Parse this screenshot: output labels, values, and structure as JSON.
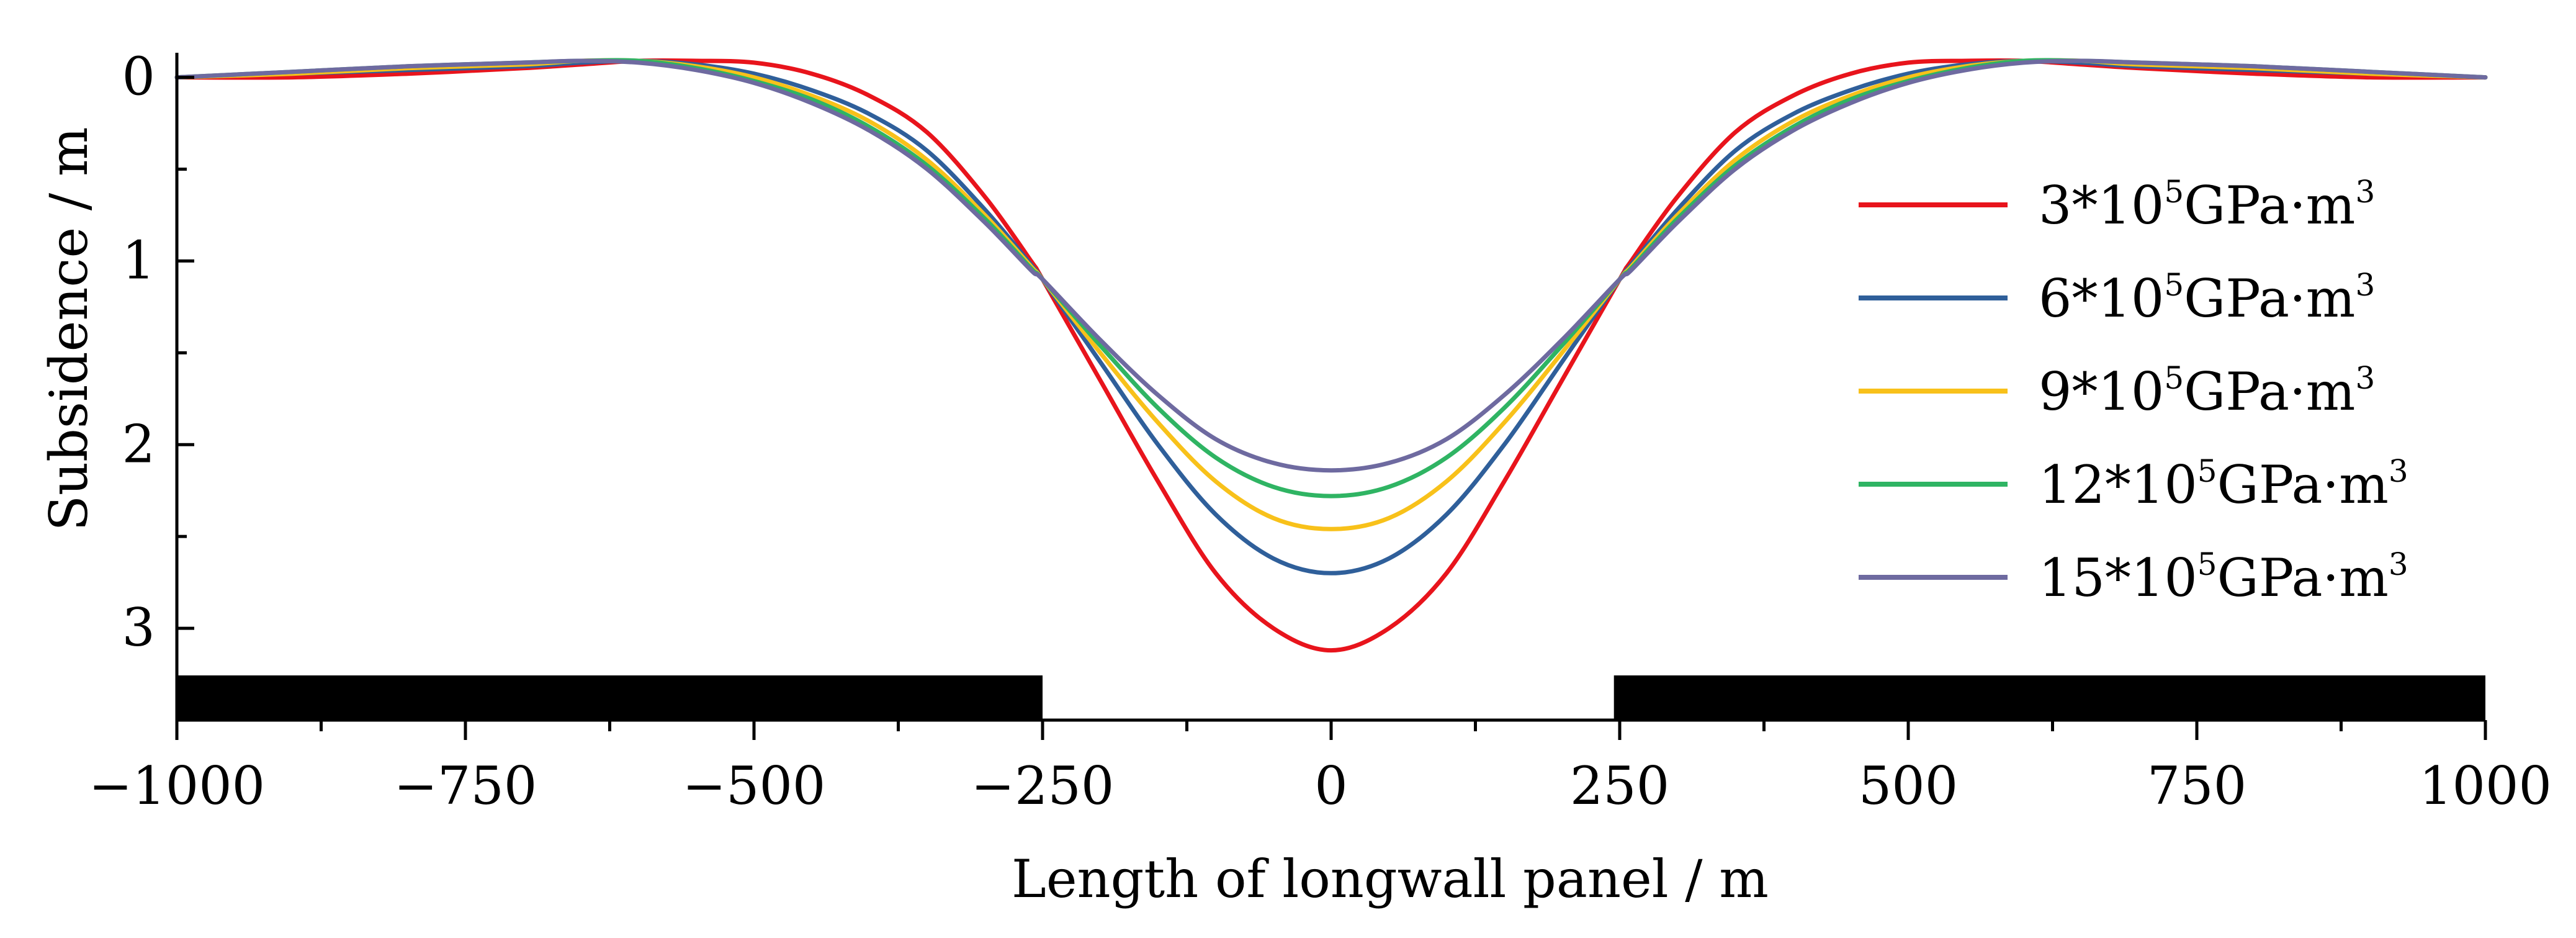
{
  "chart_data": {
    "type": "line",
    "title": "",
    "xlabel": "Length of longwall panel / m",
    "ylabel": "Subsidence / m",
    "xlim": [
      -1000,
      1000
    ],
    "ylim": [
      3.5,
      -0.1
    ],
    "x_ticks": [
      -1000,
      -750,
      -500,
      -250,
      0,
      250,
      500,
      750,
      1000
    ],
    "x_tick_labels": [
      "−1000",
      "−750",
      "−500",
      "−250",
      "0",
      "250",
      "500",
      "750",
      "1000"
    ],
    "y_ticks": [
      0,
      1,
      2,
      3
    ],
    "y_tick_labels": [
      "0",
      "1",
      "2",
      "3"
    ],
    "legend_position": "right",
    "x": [
      -1000,
      -900,
      -800,
      -700,
      -650,
      -600,
      -550,
      -500,
      -450,
      -400,
      -350,
      -300,
      -260,
      -250,
      -200,
      -150,
      -100,
      -50,
      0,
      50,
      100,
      150,
      200,
      250,
      260,
      300,
      350,
      400,
      450,
      500,
      550,
      600,
      650,
      700,
      800,
      900,
      1000
    ],
    "series": [
      {
        "name": "3*10^5 GPa·m^3",
        "legend_base": "3*10",
        "legend_exp": "5",
        "legend_unit": "GPa·m",
        "legend_unit_exp": "3",
        "color": "#e8141c",
        "values": [
          0.0,
          0.0,
          -0.02,
          -0.05,
          -0.07,
          -0.09,
          -0.09,
          -0.08,
          -0.02,
          0.1,
          0.3,
          0.65,
          1.0,
          1.1,
          1.65,
          2.2,
          2.7,
          3.0,
          3.12,
          3.0,
          2.7,
          2.2,
          1.65,
          1.1,
          1.0,
          0.65,
          0.3,
          0.1,
          -0.02,
          -0.08,
          -0.09,
          -0.09,
          -0.07,
          -0.05,
          -0.02,
          0.0,
          0.0
        ]
      },
      {
        "name": "6*10^5 GPa·m^3",
        "legend_base": "6*10",
        "legend_exp": "5",
        "legend_unit": "GPa·m",
        "legend_unit_exp": "3",
        "color": "#2f5f9a",
        "values": [
          0.0,
          -0.02,
          -0.04,
          -0.06,
          -0.08,
          -0.09,
          -0.07,
          -0.02,
          0.07,
          0.2,
          0.4,
          0.72,
          1.02,
          1.1,
          1.55,
          2.0,
          2.38,
          2.62,
          2.7,
          2.62,
          2.38,
          2.0,
          1.55,
          1.1,
          1.02,
          0.72,
          0.4,
          0.2,
          0.07,
          -0.02,
          -0.07,
          -0.09,
          -0.08,
          -0.06,
          -0.04,
          -0.02,
          0.0
        ]
      },
      {
        "name": "9*10^5 GPa·m^3",
        "legend_base": "9*10",
        "legend_exp": "5",
        "legend_unit": "GPa·m",
        "legend_unit_exp": "3",
        "color": "#f8c11a",
        "values": [
          0.0,
          -0.02,
          -0.05,
          -0.07,
          -0.09,
          -0.09,
          -0.06,
          0.0,
          0.1,
          0.24,
          0.45,
          0.75,
          1.03,
          1.1,
          1.5,
          1.88,
          2.2,
          2.4,
          2.46,
          2.4,
          2.2,
          1.88,
          1.5,
          1.1,
          1.03,
          0.75,
          0.45,
          0.24,
          0.1,
          0.0,
          -0.06,
          -0.09,
          -0.09,
          -0.07,
          -0.05,
          -0.02,
          0.0
        ]
      },
      {
        "name": "12*10^5 GPa·m^3",
        "legend_base": "12*10",
        "legend_exp": "5",
        "legend_unit": "GPa·m",
        "legend_unit_exp": "3",
        "color": "#2fb463",
        "values": [
          0.0,
          -0.03,
          -0.06,
          -0.08,
          -0.09,
          -0.09,
          -0.05,
          0.02,
          0.12,
          0.27,
          0.48,
          0.77,
          1.04,
          1.1,
          1.46,
          1.8,
          2.07,
          2.23,
          2.28,
          2.23,
          2.07,
          1.8,
          1.46,
          1.1,
          1.04,
          0.77,
          0.48,
          0.27,
          0.12,
          0.02,
          -0.05,
          -0.09,
          -0.09,
          -0.08,
          -0.06,
          -0.03,
          0.0
        ]
      },
      {
        "name": "15*10^5 GPa·m^3",
        "legend_base": "15*10",
        "legend_exp": "5",
        "legend_unit": "GPa·m",
        "legend_unit_exp": "3",
        "color": "#6e6aa0",
        "values": [
          0.0,
          -0.03,
          -0.06,
          -0.08,
          -0.09,
          -0.08,
          -0.04,
          0.03,
          0.14,
          0.29,
          0.5,
          0.79,
          1.05,
          1.1,
          1.43,
          1.73,
          1.97,
          2.1,
          2.14,
          2.1,
          1.97,
          1.73,
          1.43,
          1.1,
          1.05,
          0.79,
          0.5,
          0.29,
          0.14,
          0.03,
          -0.04,
          -0.08,
          -0.09,
          -0.08,
          -0.06,
          -0.03,
          0.0
        ]
      }
    ],
    "annotations": [
      {
        "type": "solid-block",
        "x_start": -1000,
        "x_end": -250,
        "label": "unmined coal (left)"
      },
      {
        "type": "solid-block",
        "x_start": 245,
        "x_end": 1000,
        "label": "unmined coal (right)"
      }
    ]
  },
  "colors": {
    "axis": "#000000",
    "block": "#000000",
    "background": "#ffffff"
  }
}
